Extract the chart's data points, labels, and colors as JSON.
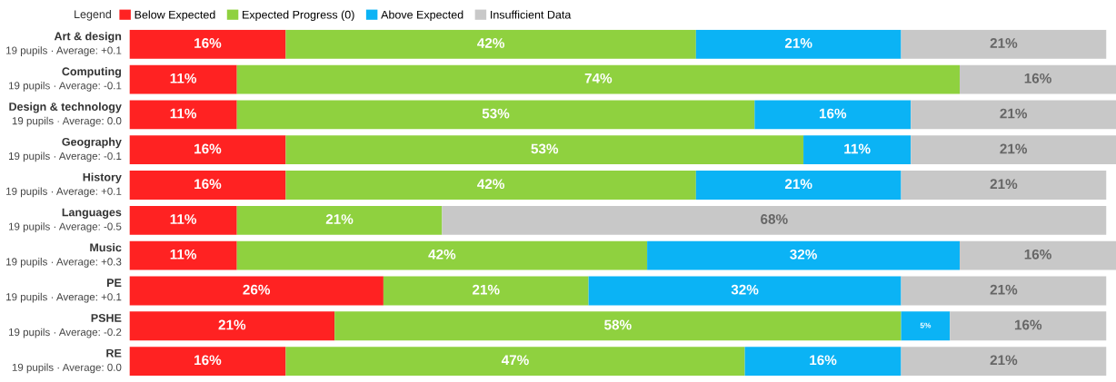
{
  "chart_data": {
    "type": "bar",
    "orientation": "horizontal",
    "stacked": true,
    "legend": "top left",
    "legend_title": "Legend",
    "categories": [
      "Art & design",
      "Computing",
      "Design & technology",
      "Geography",
      "History",
      "Languages",
      "Music",
      "PE",
      "PSHE",
      "RE"
    ],
    "annotations": [
      "19 pupils · Average: +0.1",
      "19 pupils · Average: -0.1",
      "19 pupils · Average: 0.0",
      "19 pupils · Average: -0.1",
      "19 pupils · Average: +0.1",
      "19 pupils · Average: -0.5",
      "19 pupils · Average: +0.3",
      "19 pupils · Average: +0.1",
      "19 pupils · Average: -0.2",
      "19 pupils · Average: 0.0"
    ],
    "series": [
      {
        "name": "Below Expected",
        "color": "#ff2222",
        "values": [
          16,
          11,
          11,
          16,
          16,
          11,
          11,
          26,
          21,
          16
        ],
        "value_labels": [
          "16%",
          "11%",
          "11%",
          "16%",
          "16%",
          "11%",
          "11%",
          "26%",
          "21%",
          "16%"
        ]
      },
      {
        "name": "Expected Progress (0)",
        "color": "#8fd13f",
        "values": [
          42,
          74,
          53,
          53,
          42,
          21,
          42,
          21,
          58,
          47
        ],
        "value_labels": [
          "42%",
          "74%",
          "53%",
          "53%",
          "42%",
          "21%",
          "42%",
          "21%",
          "58%",
          "47%"
        ]
      },
      {
        "name": "Above Expected",
        "color": "#0bb3f5",
        "values": [
          21,
          0,
          16,
          11,
          21,
          0,
          32,
          32,
          5,
          16
        ],
        "value_labels": [
          "21%",
          null,
          "16%",
          "11%",
          "21%",
          null,
          "32%",
          "32%",
          "5%",
          "16%"
        ]
      },
      {
        "name": "Insufficient Data",
        "color": "#c8c8c8",
        "values": [
          21,
          16,
          21,
          21,
          21,
          68,
          16,
          21,
          16,
          21
        ],
        "value_labels": [
          "21%",
          "16%",
          "21%",
          "21%",
          "21%",
          "68%",
          "16%",
          "21%",
          "16%",
          "21%"
        ]
      }
    ]
  }
}
